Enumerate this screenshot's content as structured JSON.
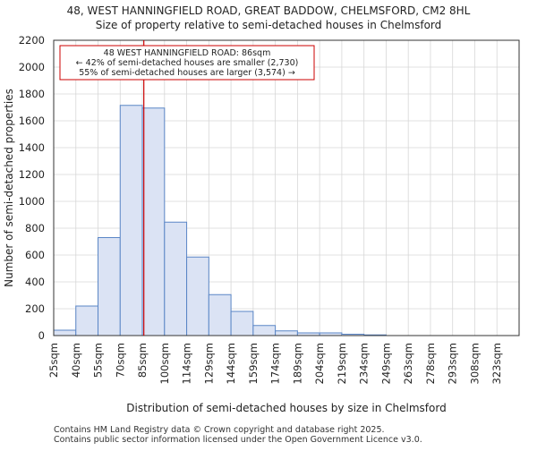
{
  "title_line1": "48, WEST HANNINGFIELD ROAD, GREAT BADDOW, CHELMSFORD, CM2 8HL",
  "title_line2": "Size of property relative to semi-detached houses in Chelmsford",
  "chart_data": {
    "type": "bar",
    "xlabel": "Distribution of semi-detached houses by size in Chelmsford",
    "ylabel": "Number of semi-detached properties",
    "ylim": [
      0,
      2200
    ],
    "yticks": [
      0,
      200,
      400,
      600,
      800,
      1000,
      1200,
      1400,
      1600,
      1800,
      2000,
      2200
    ],
    "grid": true,
    "categories": [
      "25sqm",
      "40sqm",
      "55sqm",
      "70sqm",
      "85sqm",
      "100sqm",
      "114sqm",
      "129sqm",
      "144sqm",
      "159sqm",
      "174sqm",
      "189sqm",
      "204sqm",
      "219sqm",
      "234sqm",
      "249sqm",
      "263sqm",
      "278sqm",
      "293sqm",
      "308sqm",
      "323sqm"
    ],
    "values": [
      40,
      220,
      730,
      1715,
      1695,
      845,
      585,
      305,
      180,
      75,
      35,
      20,
      20,
      10,
      5,
      0,
      0,
      0,
      0,
      0,
      0
    ],
    "marker": {
      "value_sqm": 86,
      "color": "#cc0000",
      "line1": "48 WEST HANNINGFIELD ROAD: 86sqm",
      "line2": "← 42% of semi-detached houses are smaller (2,730)",
      "line3": "55% of semi-detached houses are larger (3,574) →"
    }
  },
  "footer_line1": "Contains HM Land Registry data © Crown copyright and database right 2025.",
  "footer_line2": "Contains public sector information licensed under the Open Government Licence v3.0."
}
